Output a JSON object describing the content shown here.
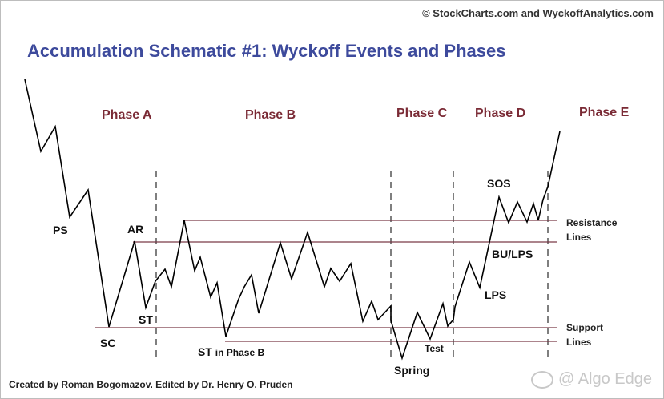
{
  "header": {
    "copyright": "© StockCharts.com and WyckoffAnalytics.com",
    "title": "Accumulation Schematic #1: Wyckoff Events and Phases"
  },
  "phases": [
    {
      "label": "Phase A"
    },
    {
      "label": "Phase B"
    },
    {
      "label": "Phase C"
    },
    {
      "label": "Phase D"
    },
    {
      "label": "Phase E"
    }
  ],
  "events": {
    "ps": "PS",
    "sc": "SC",
    "ar": "AR",
    "st": "ST",
    "st_phase_b": "ST",
    "st_phase_b_suffix": "in Phase B",
    "spring": "Spring",
    "test": "Test",
    "lps": "LPS",
    "bu_lps": "BU/LPS",
    "sos": "SOS"
  },
  "line_labels": {
    "resistance_1": "Resistance",
    "resistance_2": "Lines",
    "support_1": "Support",
    "support_2": "Lines"
  },
  "footer": {
    "credit": "Created by Roman Bogomazov. Edited by Dr. Henry O. Pruden",
    "watermark": "@ Algo Edge"
  },
  "colors": {
    "title": "#3d4a9c",
    "phase": "#7a2a35",
    "price_line": "#000000",
    "level_line": "#7a3a48",
    "divider": "#555555"
  }
}
